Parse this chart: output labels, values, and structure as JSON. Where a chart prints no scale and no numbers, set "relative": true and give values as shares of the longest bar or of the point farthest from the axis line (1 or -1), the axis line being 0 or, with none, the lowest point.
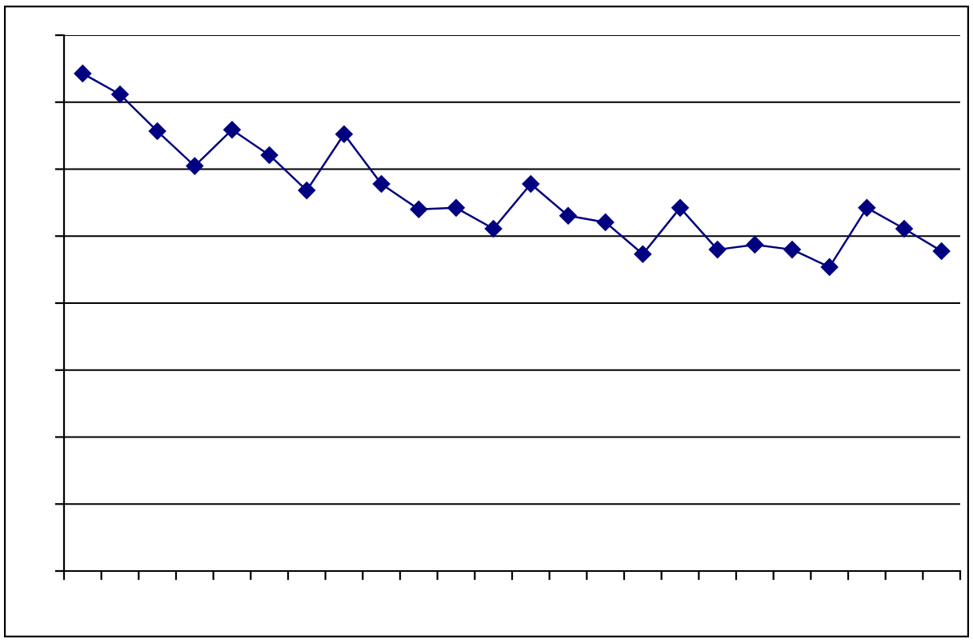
{
  "chart_data": {
    "type": "line",
    "relative": true,
    "categories": [
      null,
      null,
      null,
      null,
      null,
      null,
      null,
      null,
      null,
      null,
      null,
      null,
      null,
      null,
      null,
      null,
      null,
      null,
      null,
      null,
      null,
      null,
      null,
      null
    ],
    "series": [
      {
        "color": "#000080",
        "values": [
          1.0,
          0.958,
          0.884,
          0.814,
          0.887,
          0.836,
          0.765,
          0.878,
          0.778,
          0.727,
          0.73,
          0.688,
          0.778,
          0.714,
          0.701,
          0.637,
          0.73,
          0.646,
          0.656,
          0.646,
          0.611,
          0.73,
          0.688,
          0.643
        ]
      }
    ],
    "marker": "diamond",
    "line_style": "solid",
    "grid": "y",
    "tick_labels": false
  }
}
